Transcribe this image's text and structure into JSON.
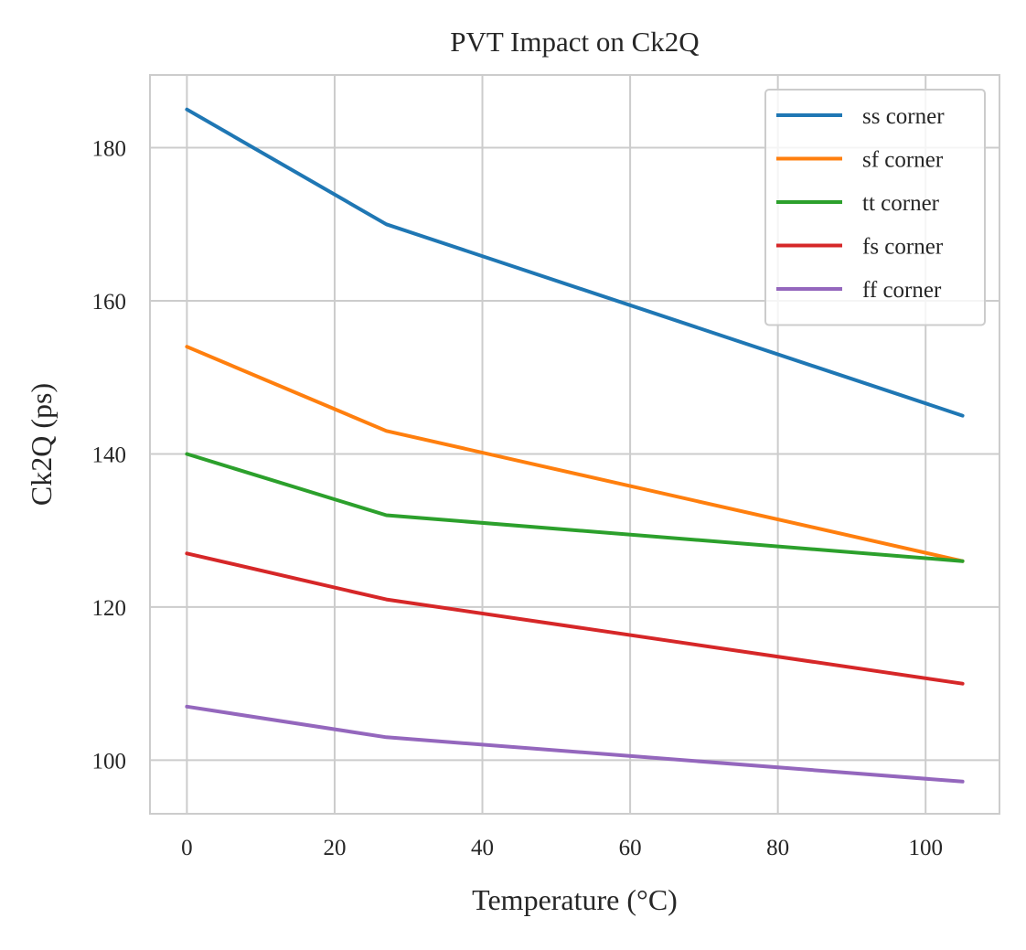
{
  "chart_data": {
    "type": "line",
    "title": "PVT Impact on Ck2Q",
    "xlabel": "Temperature (°C)",
    "ylabel": "Ck2Q (ps)",
    "x": [
      0,
      27,
      105
    ],
    "xlim": [
      -5,
      110
    ],
    "ylim": [
      93,
      189.5
    ],
    "xticks": [
      0,
      20,
      40,
      60,
      80,
      100
    ],
    "yticks": [
      100,
      120,
      140,
      160,
      180
    ],
    "grid": true,
    "legend_position": "upper right",
    "series": [
      {
        "name": "ss corner",
        "color": "#1f77b4",
        "values": [
          185,
          170,
          145
        ]
      },
      {
        "name": "sf corner",
        "color": "#ff7f0e",
        "values": [
          154,
          143,
          126
        ]
      },
      {
        "name": "tt corner",
        "color": "#2ca02c",
        "values": [
          140,
          132,
          126
        ]
      },
      {
        "name": "fs corner",
        "color": "#d62728",
        "values": [
          127,
          121,
          110
        ]
      },
      {
        "name": "ff corner",
        "color": "#9467bd",
        "values": [
          107,
          103,
          97.2
        ]
      }
    ]
  }
}
